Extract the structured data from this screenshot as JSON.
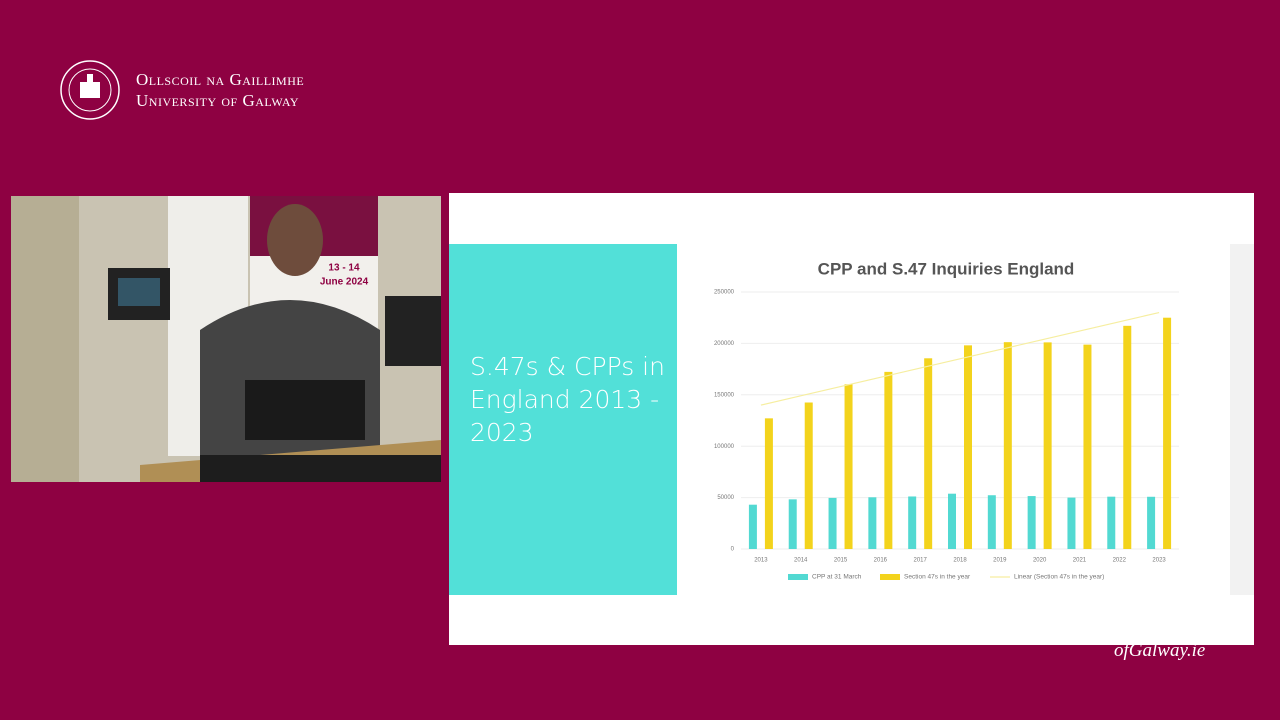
{
  "header": {
    "logo_line1": "Ollscoil na Gaillimhe",
    "logo_line2": "University of Galway"
  },
  "video": {
    "banner_date": "13 - 14",
    "banner_month": "June 2024"
  },
  "slide": {
    "heading": "S.47s & CPPs in England 2013 - 2023"
  },
  "footer": {
    "url": "ofGalway.ie"
  },
  "chart_data": {
    "type": "bar",
    "title": "CPP and S.47 Inquiries England",
    "categories": [
      "2013",
      "2014",
      "2015",
      "2016",
      "2017",
      "2018",
      "2019",
      "2020",
      "2021",
      "2022",
      "2023"
    ],
    "series": [
      {
        "name": "CPP at 31 March",
        "color": "#52d9d2",
        "values": [
          43100,
          48300,
          49700,
          50300,
          51100,
          53800,
          52300,
          51500,
          50000,
          50900,
          50800
        ]
      },
      {
        "name": "Section 47s in the year",
        "color": "#f3d31c",
        "values": [
          127100,
          142500,
          160200,
          172300,
          185500,
          198100,
          201200,
          201000,
          198800,
          217100,
          225000
        ]
      },
      {
        "name": "Linear (Section 47s in the year)",
        "type": "line",
        "color": "#f6eea0",
        "values": [
          140000,
          149000,
          158000,
          167000,
          176000,
          185000,
          194000,
          203000,
          212000,
          221000,
          230000
        ]
      }
    ],
    "ylim": [
      0,
      250000
    ],
    "yticks": [
      0,
      50000,
      100000,
      150000,
      200000,
      250000
    ],
    "grid": true,
    "legend": "bottom"
  }
}
